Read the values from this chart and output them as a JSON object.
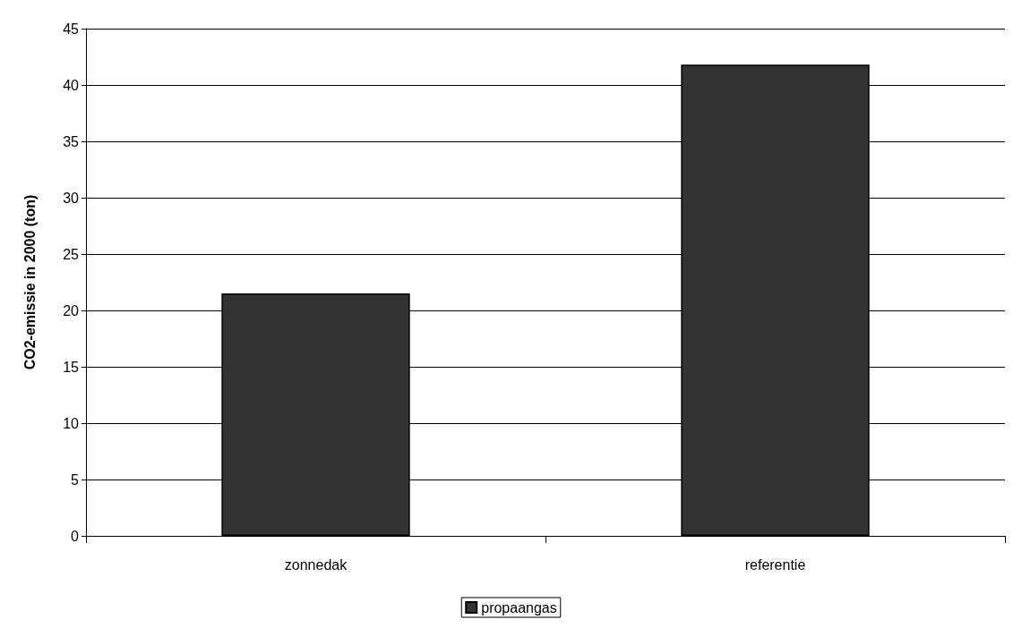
{
  "chart_data": {
    "type": "bar",
    "ylabel": "CO2-emissie in 2000 (ton)",
    "categories": [
      "zonnedak",
      "referentie"
    ],
    "series": [
      {
        "name": "propaangas",
        "color": "#333333",
        "values": [
          21.5,
          41.8
        ]
      }
    ],
    "ylim": [
      0,
      45
    ],
    "yticks": [
      0,
      5,
      10,
      15,
      20,
      25,
      30,
      35,
      40,
      45
    ],
    "grid": "y",
    "legend": "bottom"
  }
}
